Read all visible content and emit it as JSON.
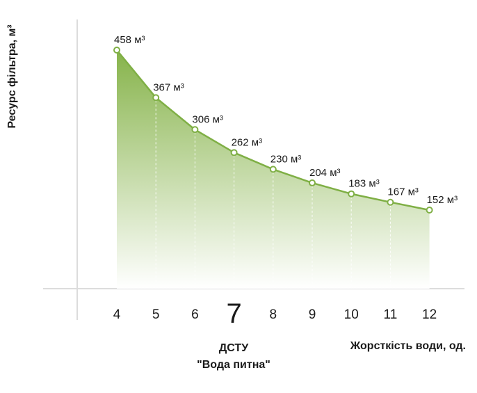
{
  "chart_data": {
    "type": "area",
    "x": [
      4,
      5,
      6,
      7,
      8,
      9,
      10,
      11,
      12
    ],
    "values": [
      458,
      367,
      306,
      262,
      230,
      204,
      183,
      167,
      152
    ],
    "value_labels": [
      "458 м³",
      "367 м³",
      "306 м³",
      "262 м³",
      "230 м³",
      "204 м³",
      "183 м³",
      "167 м³",
      "152 м³"
    ],
    "tick_labels": [
      "4",
      "5",
      "6",
      "7",
      "8",
      "9",
      "10",
      "11",
      "12"
    ],
    "highlight_tick": "7",
    "ylabel": "Ресурс фільтра, м³",
    "xlabel": "Жорсткість води, од.",
    "annotation": [
      "ДСТУ",
      "\"Вода питна\""
    ],
    "colors": {
      "line": "#7faf45",
      "fill_top": "#86b34a",
      "fill_bottom": "#ffffff",
      "axis": "#dcdcdc",
      "text": "#1a1a1a"
    }
  }
}
